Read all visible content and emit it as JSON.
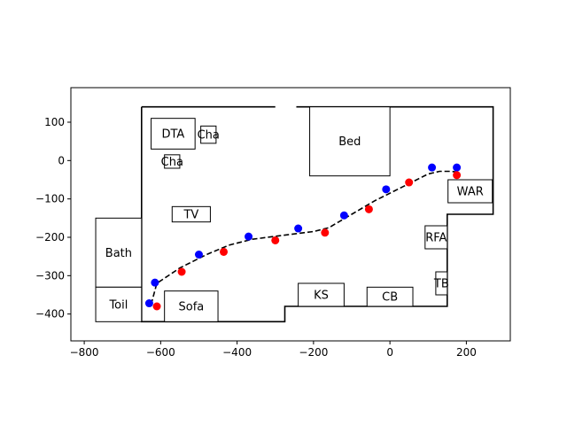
{
  "chart_data": {
    "type": "scatter",
    "xlim": [
      -835,
      315
    ],
    "ylim": [
      -470,
      190
    ],
    "xticks": [
      -800,
      -600,
      -400,
      -200,
      0,
      200
    ],
    "yticks": [
      100,
      0,
      -100,
      -200,
      -300,
      -400
    ],
    "xtick_labels": [
      "−800",
      "−600",
      "−400",
      "−200",
      "0",
      "200"
    ],
    "ytick_labels": [
      "100",
      "0",
      "−100",
      "−200",
      "−300",
      "−400"
    ],
    "grid": false,
    "walls": [
      [
        -650,
        140
      ],
      [
        -650,
        -420
      ],
      [
        -275,
        -420
      ],
      [
        -275,
        -380
      ],
      [
        150,
        -380
      ],
      [
        150,
        -140
      ],
      [
        270,
        -140
      ],
      [
        270,
        140
      ],
      [
        -650,
        140
      ]
    ],
    "door_gap": [
      -300,
      -245
    ],
    "rooms": [
      {
        "label": "DTA",
        "x0": -625,
        "x1": -510,
        "y0": 30,
        "y1": 110
      },
      {
        "label": "Cha",
        "x0": -495,
        "x1": -455,
        "y0": 45,
        "y1": 90
      },
      {
        "label": "Cha",
        "x0": -590,
        "x1": -550,
        "y0": -20,
        "y1": 15
      },
      {
        "label": "Bed",
        "x0": -210,
        "x1": 0,
        "y0": -40,
        "y1": 140
      },
      {
        "label": "TV",
        "x0": -570,
        "x1": -470,
        "y0": -160,
        "y1": -120
      },
      {
        "label": "WAR",
        "x0": 152,
        "x1": 268,
        "y0": -110,
        "y1": -50
      },
      {
        "label": "RFA",
        "x0": 92,
        "x1": 150,
        "y0": -230,
        "y1": -170
      },
      {
        "label": "Bath",
        "x0": -770,
        "x1": -650,
        "y0": -330,
        "y1": -150
      },
      {
        "label": "Toil",
        "x0": -770,
        "x1": -650,
        "y0": -420,
        "y1": -330
      },
      {
        "label": "Sofa",
        "x0": -590,
        "x1": -450,
        "y0": -420,
        "y1": -340
      },
      {
        "label": "KS",
        "x0": -240,
        "x1": -120,
        "y0": -380,
        "y1": -320
      },
      {
        "label": "CB",
        "x0": -60,
        "x1": 60,
        "y0": -380,
        "y1": -330
      },
      {
        "label": "TB",
        "x0": 120,
        "x1": 150,
        "y0": -350,
        "y1": -290
      }
    ],
    "path": [
      [
        -625,
        -375
      ],
      [
        -610,
        -320
      ],
      [
        -550,
        -280
      ],
      [
        -480,
        -245
      ],
      [
        -420,
        -220
      ],
      [
        -360,
        -205
      ],
      [
        -280,
        -195
      ],
      [
        -200,
        -185
      ],
      [
        -160,
        -175
      ],
      [
        -100,
        -140
      ],
      [
        -40,
        -105
      ],
      [
        30,
        -70
      ],
      [
        100,
        -35
      ],
      [
        130,
        -28
      ],
      [
        160,
        -28
      ],
      [
        175,
        -30
      ]
    ],
    "blue_points": {
      "x": [
        -630,
        -615,
        -500,
        -370,
        -240,
        -120,
        -10,
        110,
        175
      ],
      "y": [
        -372,
        -318,
        -245,
        -198,
        -177,
        -143,
        -75,
        -18,
        -18
      ]
    },
    "red_points": {
      "x": [
        -610,
        -545,
        -435,
        -300,
        -170,
        -55,
        50,
        175
      ],
      "y": [
        -380,
        -290,
        -238,
        -208,
        -188,
        -127,
        -57,
        -38
      ]
    }
  }
}
